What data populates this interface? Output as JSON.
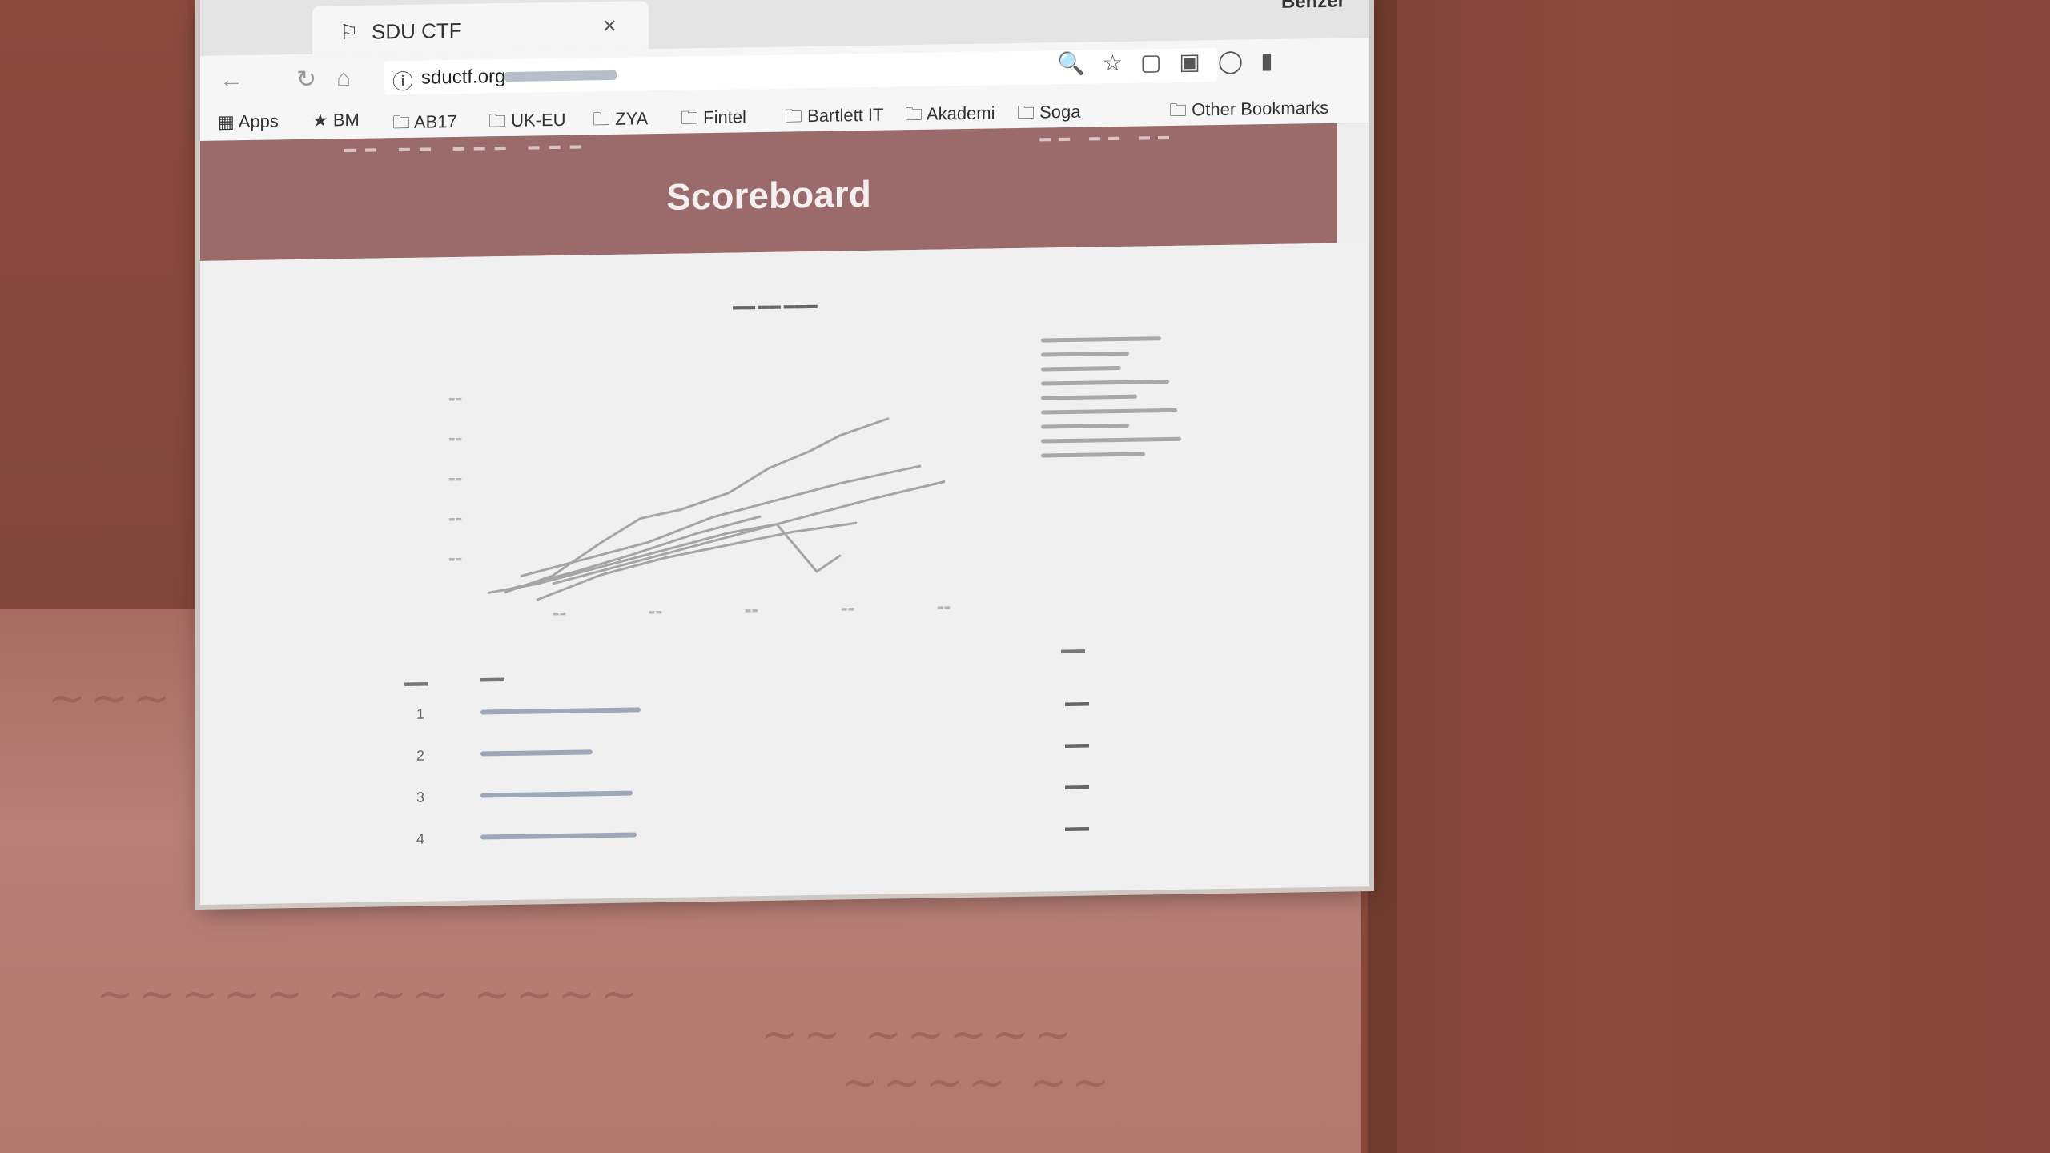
{
  "browser": {
    "tab_title": "SDU CTF",
    "tab_close": "×",
    "user": "Benzer",
    "url": "sductf.org",
    "bookmarks": [
      {
        "label": "Apps"
      },
      {
        "label": "BM"
      },
      {
        "label": "AB17"
      },
      {
        "label": "UK-EU"
      },
      {
        "label": "ZYA"
      },
      {
        "label": "Fintel"
      },
      {
        "label": "Bartlett IT"
      },
      {
        "label": "Akademi"
      },
      {
        "label": "Soga"
      },
      {
        "label": "Other Bookmarks"
      }
    ]
  },
  "page": {
    "title": "Scoreboard"
  },
  "scoreboard": {
    "rows": [
      {
        "place": "1"
      },
      {
        "place": "2"
      },
      {
        "place": "3"
      },
      {
        "place": "4"
      }
    ]
  }
}
